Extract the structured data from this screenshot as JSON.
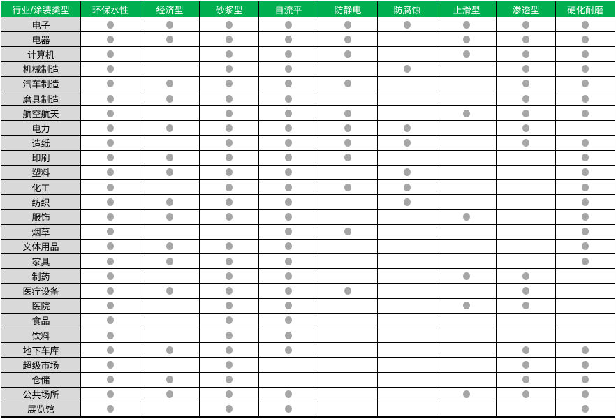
{
  "table": {
    "header_color": "#00b050",
    "label_bg": "#d9d9d9",
    "dot_color": "#a6a6a6",
    "dot_icon": "filled-circle",
    "corner": "行业/涂装类型",
    "columns": [
      "环保水性",
      "经济型",
      "砂浆型",
      "自流平",
      "防静电",
      "防腐蚀",
      "止滑型",
      "渗透型",
      "硬化耐磨"
    ],
    "rows": [
      {
        "label": "电子",
        "marks": [
          1,
          1,
          1,
          1,
          1,
          1,
          1,
          1,
          1
        ]
      },
      {
        "label": "电器",
        "marks": [
          1,
          1,
          1,
          1,
          1,
          0,
          1,
          1,
          1
        ]
      },
      {
        "label": "计算机",
        "marks": [
          1,
          0,
          1,
          1,
          1,
          0,
          1,
          1,
          1
        ]
      },
      {
        "label": "机械制造",
        "marks": [
          1,
          0,
          1,
          1,
          0,
          1,
          0,
          1,
          1
        ]
      },
      {
        "label": "汽车制造",
        "marks": [
          1,
          1,
          1,
          1,
          1,
          0,
          0,
          1,
          1
        ]
      },
      {
        "label": "磨具制造",
        "marks": [
          1,
          1,
          1,
          1,
          0,
          0,
          0,
          1,
          1
        ]
      },
      {
        "label": "航空航天",
        "marks": [
          1,
          0,
          1,
          1,
          1,
          0,
          1,
          1,
          1
        ]
      },
      {
        "label": "电力",
        "marks": [
          1,
          1,
          1,
          1,
          1,
          1,
          0,
          1,
          0
        ]
      },
      {
        "label": "造纸",
        "marks": [
          1,
          0,
          1,
          1,
          1,
          1,
          0,
          1,
          1
        ]
      },
      {
        "label": "印刷",
        "marks": [
          1,
          1,
          1,
          1,
          1,
          0,
          0,
          0,
          1
        ]
      },
      {
        "label": "塑料",
        "marks": [
          1,
          1,
          1,
          1,
          0,
          1,
          0,
          0,
          1
        ]
      },
      {
        "label": "化工",
        "marks": [
          1,
          0,
          1,
          1,
          1,
          1,
          0,
          0,
          1
        ]
      },
      {
        "label": "纺织",
        "marks": [
          1,
          1,
          1,
          1,
          0,
          1,
          0,
          0,
          1
        ]
      },
      {
        "label": "服饰",
        "marks": [
          1,
          1,
          1,
          1,
          0,
          0,
          1,
          0,
          1
        ]
      },
      {
        "label": "烟草",
        "marks": [
          1,
          0,
          0,
          1,
          1,
          0,
          0,
          0,
          1
        ]
      },
      {
        "label": "文体用品",
        "marks": [
          1,
          1,
          1,
          1,
          0,
          0,
          0,
          0,
          1
        ]
      },
      {
        "label": "家具",
        "marks": [
          1,
          1,
          1,
          1,
          0,
          0,
          0,
          0,
          1
        ]
      },
      {
        "label": "制药",
        "marks": [
          1,
          0,
          1,
          1,
          0,
          0,
          1,
          1,
          0
        ]
      },
      {
        "label": "医疗设备",
        "marks": [
          1,
          1,
          1,
          1,
          1,
          0,
          0,
          1,
          0
        ]
      },
      {
        "label": "医院",
        "marks": [
          1,
          0,
          1,
          1,
          0,
          0,
          1,
          1,
          0
        ]
      },
      {
        "label": "食品",
        "marks": [
          1,
          0,
          1,
          1,
          0,
          0,
          0,
          0,
          0
        ]
      },
      {
        "label": "饮料",
        "marks": [
          1,
          0,
          1,
          1,
          0,
          0,
          0,
          0,
          0
        ]
      },
      {
        "label": "地下车库",
        "marks": [
          1,
          1,
          1,
          1,
          0,
          0,
          0,
          1,
          1
        ]
      },
      {
        "label": "超级市场",
        "marks": [
          1,
          0,
          1,
          0,
          0,
          0,
          0,
          1,
          1
        ]
      },
      {
        "label": "仓储",
        "marks": [
          1,
          1,
          1,
          0,
          0,
          0,
          0,
          1,
          1
        ]
      },
      {
        "label": "公共场所",
        "marks": [
          1,
          1,
          1,
          1,
          0,
          0,
          1,
          1,
          1
        ]
      },
      {
        "label": "展览馆",
        "marks": [
          1,
          0,
          1,
          1,
          0,
          0,
          0,
          0,
          1
        ]
      }
    ]
  }
}
